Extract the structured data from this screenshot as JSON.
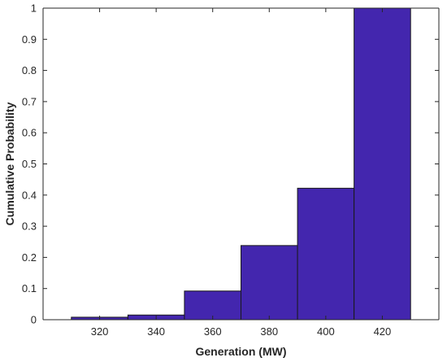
{
  "chart_data": {
    "type": "bar",
    "title": "",
    "xlabel": "Generation (MW)",
    "ylabel": "Cumulative Probability",
    "bin_width": 20,
    "bin_centers": [
      320,
      340,
      360,
      380,
      400,
      420
    ],
    "values": [
      0.008,
      0.015,
      0.092,
      0.238,
      0.422,
      1.0
    ],
    "xlim": [
      300,
      440
    ],
    "ylim": [
      0,
      1
    ],
    "xticks": [
      320,
      340,
      360,
      380,
      400,
      420
    ],
    "yticks": [
      0,
      0.1,
      0.2,
      0.3,
      0.4,
      0.5,
      0.6,
      0.7,
      0.8,
      0.9,
      1
    ],
    "bar_color": "#4326AE",
    "edge_color": "#1a1a1a",
    "grid": false
  }
}
